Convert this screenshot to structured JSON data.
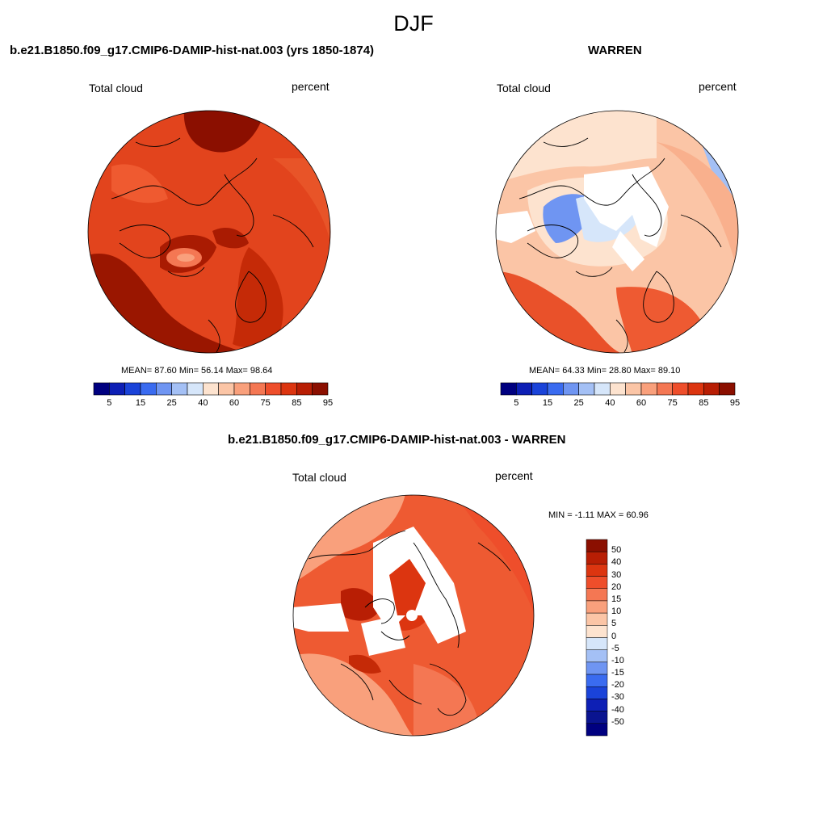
{
  "title": "DJF",
  "panels": [
    {
      "title": "b.e21.B1850.f09_g17.CMIP6-DAMIP-hist-nat.003 (yrs 1850-1874)",
      "left_label": "Total cloud",
      "right_label": "percent",
      "stats": "MEAN=  87.60  Min=  56.14  Max=  98.64"
    },
    {
      "title": "WARREN",
      "left_label": "Total cloud",
      "right_label": "percent",
      "stats": "MEAN=  64.33  Min=  28.80  Max=  89.10"
    },
    {
      "title": "b.e21.B1850.f09_g17.CMIP6-DAMIP-hist-nat.003 - WARREN",
      "left_label": "Total cloud",
      "right_label": "percent",
      "stats": "MIN =  -1.11 MAX =  60.96"
    }
  ],
  "colorbar_abs": {
    "labels": [
      "5",
      "15",
      "25",
      "40",
      "60",
      "75",
      "85",
      "95"
    ],
    "colors": [
      "#000080",
      "#0d1fb5",
      "#1a43d9",
      "#3a6bf0",
      "#6f95f2",
      "#a4c0f5",
      "#d6e6fa",
      "#fde3cf",
      "#fbc5a6",
      "#f9a07c",
      "#f47753",
      "#ee4e2b",
      "#dc3510",
      "#b81e04",
      "#8b0f00"
    ]
  },
  "colorbar_diff": {
    "labels": [
      "50",
      "40",
      "30",
      "20",
      "15",
      "10",
      "5",
      "0",
      "-5",
      "-10",
      "-15",
      "-20",
      "-30",
      "-40",
      "-50"
    ],
    "colors": [
      "#8b0f00",
      "#b81e04",
      "#dc3510",
      "#ee4e2b",
      "#f47753",
      "#f9a07c",
      "#fbc5a6",
      "#fde3cf",
      "#d6e6fa",
      "#a4c0f5",
      "#6f95f2",
      "#3a6bf0",
      "#1a43d9",
      "#0d1fb5",
      "#0a1490",
      "#000080"
    ]
  }
}
